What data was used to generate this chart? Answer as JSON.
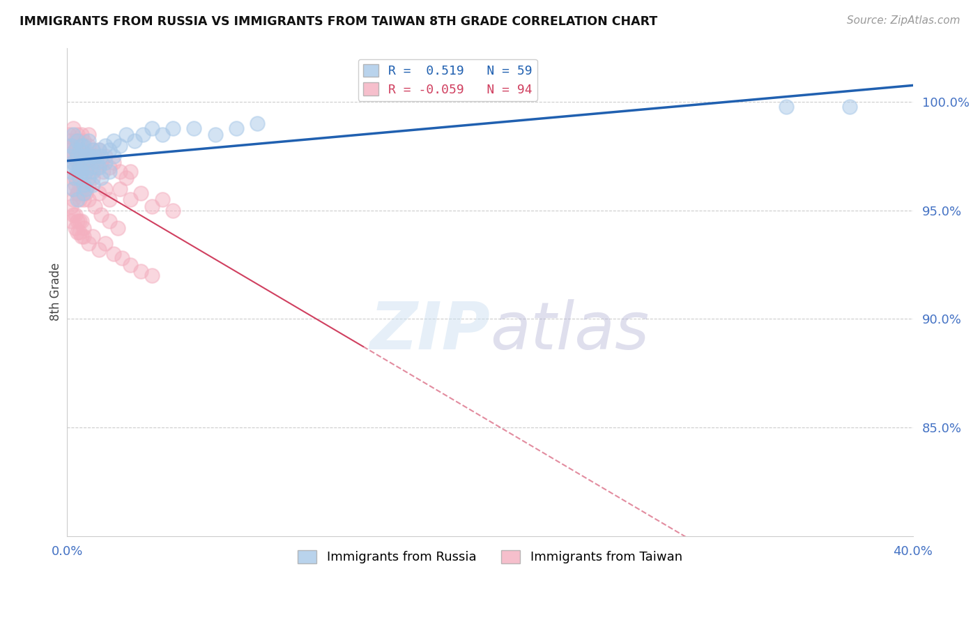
{
  "title": "IMMIGRANTS FROM RUSSIA VS IMMIGRANTS FROM TAIWAN 8TH GRADE CORRELATION CHART",
  "source_text": "Source: ZipAtlas.com",
  "ylabel": "8th Grade",
  "xmin": 0.0,
  "xmax": 0.4,
  "ymin": 0.8,
  "ymax": 1.025,
  "russia_R": 0.519,
  "russia_N": 59,
  "taiwan_R": -0.059,
  "taiwan_N": 94,
  "russia_color": "#a8c8e8",
  "taiwan_color": "#f4b0c0",
  "russia_trend_color": "#2060b0",
  "taiwan_trend_color": "#d04060",
  "legend_label_russia": "Immigrants from Russia",
  "legend_label_taiwan": "Immigrants from Taiwan",
  "ytick_vals": [
    0.85,
    0.9,
    0.95,
    1.0
  ],
  "ytick_labels": [
    "85.0%",
    "90.0%",
    "95.0%",
    "100.0%"
  ],
  "russia_x": [
    0.001,
    0.002,
    0.002,
    0.003,
    0.003,
    0.004,
    0.004,
    0.005,
    0.005,
    0.006,
    0.006,
    0.007,
    0.007,
    0.008,
    0.008,
    0.009,
    0.009,
    0.01,
    0.01,
    0.011,
    0.011,
    0.012,
    0.013,
    0.014,
    0.015,
    0.016,
    0.018,
    0.02,
    0.022,
    0.025,
    0.028,
    0.032,
    0.036,
    0.04,
    0.045,
    0.05,
    0.06,
    0.07,
    0.08,
    0.09,
    0.003,
    0.004,
    0.005,
    0.006,
    0.007,
    0.008,
    0.009,
    0.01,
    0.012,
    0.015,
    0.018,
    0.022,
    0.005,
    0.008,
    0.012,
    0.016,
    0.02,
    0.34,
    0.37
  ],
  "russia_y": [
    0.975,
    0.968,
    0.98,
    0.972,
    0.985,
    0.97,
    0.978,
    0.975,
    0.982,
    0.97,
    0.978,
    0.975,
    0.98,
    0.972,
    0.98,
    0.975,
    0.968,
    0.975,
    0.982,
    0.975,
    0.97,
    0.978,
    0.975,
    0.972,
    0.978,
    0.975,
    0.98,
    0.978,
    0.982,
    0.98,
    0.985,
    0.982,
    0.985,
    0.988,
    0.985,
    0.988,
    0.988,
    0.985,
    0.988,
    0.99,
    0.96,
    0.965,
    0.968,
    0.965,
    0.968,
    0.962,
    0.96,
    0.965,
    0.968,
    0.97,
    0.972,
    0.975,
    0.955,
    0.958,
    0.962,
    0.965,
    0.968,
    0.998,
    0.998
  ],
  "taiwan_x": [
    0.001,
    0.001,
    0.002,
    0.002,
    0.003,
    0.003,
    0.003,
    0.004,
    0.004,
    0.004,
    0.005,
    0.005,
    0.005,
    0.006,
    0.006,
    0.006,
    0.007,
    0.007,
    0.007,
    0.008,
    0.008,
    0.008,
    0.009,
    0.009,
    0.01,
    0.01,
    0.01,
    0.011,
    0.011,
    0.012,
    0.012,
    0.013,
    0.014,
    0.015,
    0.016,
    0.017,
    0.018,
    0.02,
    0.022,
    0.025,
    0.028,
    0.03,
    0.003,
    0.004,
    0.005,
    0.006,
    0.007,
    0.008,
    0.009,
    0.01,
    0.012,
    0.015,
    0.018,
    0.02,
    0.025,
    0.03,
    0.035,
    0.04,
    0.045,
    0.05,
    0.002,
    0.003,
    0.004,
    0.005,
    0.006,
    0.007,
    0.008,
    0.002,
    0.003,
    0.004,
    0.005,
    0.006,
    0.007,
    0.008,
    0.01,
    0.012,
    0.015,
    0.018,
    0.022,
    0.026,
    0.03,
    0.035,
    0.04,
    0.003,
    0.004,
    0.005,
    0.006,
    0.007,
    0.008,
    0.01,
    0.013,
    0.016,
    0.02,
    0.024
  ],
  "taiwan_y": [
    0.985,
    0.978,
    0.982,
    0.975,
    0.98,
    0.972,
    0.988,
    0.975,
    0.982,
    0.978,
    0.972,
    0.98,
    0.985,
    0.975,
    0.97,
    0.982,
    0.978,
    0.972,
    0.985,
    0.975,
    0.97,
    0.982,
    0.968,
    0.975,
    0.98,
    0.972,
    0.985,
    0.975,
    0.968,
    0.978,
    0.972,
    0.975,
    0.97,
    0.978,
    0.972,
    0.968,
    0.975,
    0.97,
    0.972,
    0.968,
    0.965,
    0.968,
    0.96,
    0.965,
    0.958,
    0.962,
    0.96,
    0.955,
    0.958,
    0.962,
    0.965,
    0.958,
    0.96,
    0.955,
    0.96,
    0.955,
    0.958,
    0.952,
    0.955,
    0.95,
    0.945,
    0.948,
    0.942,
    0.945,
    0.94,
    0.945,
    0.938,
    0.952,
    0.955,
    0.948,
    0.94,
    0.945,
    0.938,
    0.942,
    0.935,
    0.938,
    0.932,
    0.935,
    0.93,
    0.928,
    0.925,
    0.922,
    0.92,
    0.965,
    0.962,
    0.958,
    0.955,
    0.96,
    0.958,
    0.955,
    0.952,
    0.948,
    0.945,
    0.942
  ]
}
